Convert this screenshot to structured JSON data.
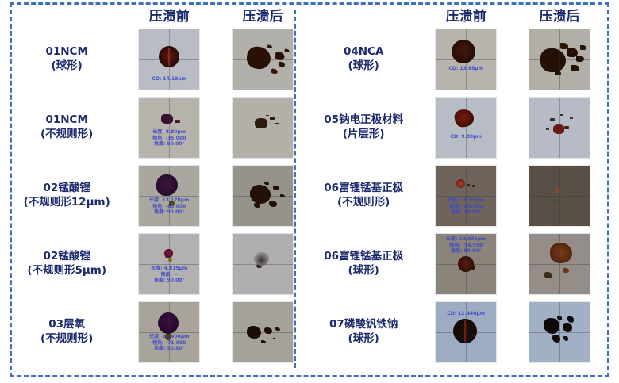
{
  "figure": {
    "colors": {
      "label_navy": "#1c2a6e",
      "border_blue": "#3f6fbe",
      "annotation_blue": "#3a46cc"
    },
    "panels": [
      {
        "header_before": "压溃前",
        "header_after": "压溃后",
        "rows": [
          {
            "label": "01NCM\n(球形)",
            "before_ann": "CD: 14.19μm"
          },
          {
            "label": "01NCM\n(不规则形)",
            "before_ann": "长度: 8.80μm\n倾角: -35.000\n角度: 90.00°"
          },
          {
            "label": "02锰酸锂\n(不规则形12μm)",
            "before_ann": "长度: 13.170μm\n倾角: -80.000\n角度: 90.00°"
          },
          {
            "label": "02锰酸锂\n(不规则形5μm)",
            "before_ann": "长度: 4.815μm\n倾角: --\n角度: 90.00°"
          },
          {
            "label": "03层氧\n(不规则形)",
            "before_ann": "长度: 11.404μm\n倾角: -71.000\n角度: 90.80°"
          }
        ]
      },
      {
        "header_before": "压溃前",
        "header_after": "压溃后",
        "rows": [
          {
            "label": "04NCA\n(球形)",
            "before_ann": "CD: 13.68μm"
          },
          {
            "label": "05钠电正极材料\n(片层形)",
            "before_ann": "CD: 9.88μm"
          },
          {
            "label": "06富锂锰基正极\n(不规则形)",
            "before_ann": "长度: 10.95μm\n倾角: -64.000\n角度: 90.00°"
          },
          {
            "label": "06富锂锰基正极\n(球形)",
            "before_ann": "长度: 12.036μm\n倾角: -94.550\n角度: 90.00°"
          },
          {
            "label": "07磷酸钒铁钠\n(球形)",
            "before_ann": "CD: 12.446μm"
          }
        ]
      }
    ]
  }
}
